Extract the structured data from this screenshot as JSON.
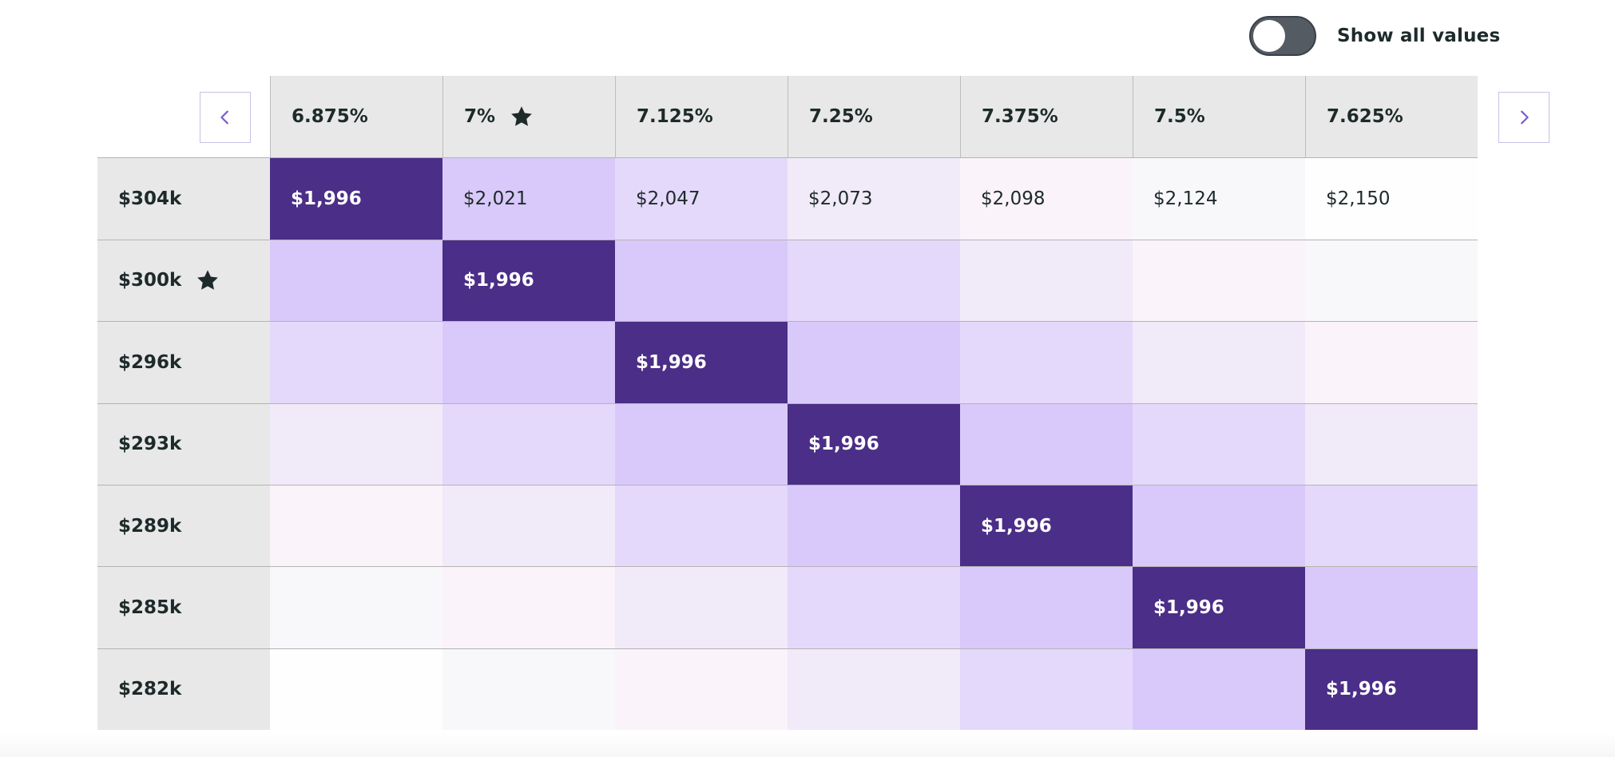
{
  "toggle": {
    "label": "Show all values",
    "on": false
  },
  "nav": {
    "prev_icon": "chevron-left-icon",
    "next_icon": "chevron-right-icon"
  },
  "colors": {
    "selected": "#4b2e87",
    "accent": "#7b5cc9",
    "levels": [
      "#4b2e87",
      "#d8c9fa",
      "#e4d9fb",
      "#f1eaf8",
      "#faf3fa",
      "#f8f8fb",
      "#fefefe"
    ]
  },
  "grid": {
    "columns": [
      {
        "label": "6.875%",
        "starred": false
      },
      {
        "label": "7%",
        "starred": true
      },
      {
        "label": "7.125%",
        "starred": false
      },
      {
        "label": "7.25%",
        "starred": false
      },
      {
        "label": "7.375%",
        "starred": false
      },
      {
        "label": "7.5%",
        "starred": false
      },
      {
        "label": "7.625%",
        "starred": false
      }
    ],
    "rows": [
      {
        "label": "$304k",
        "starred": false,
        "values": [
          "$1,996",
          "$2,021",
          "$2,047",
          "$2,073",
          "$2,098",
          "$2,124",
          "$2,150"
        ]
      },
      {
        "label": "$300k",
        "starred": true,
        "values": [
          "",
          "$1,996",
          "",
          "",
          "",
          "",
          ""
        ]
      },
      {
        "label": "$296k",
        "starred": false,
        "values": [
          "",
          "",
          "$1,996",
          "",
          "",
          "",
          ""
        ]
      },
      {
        "label": "$293k",
        "starred": false,
        "values": [
          "",
          "",
          "",
          "$1,996",
          "",
          "",
          ""
        ]
      },
      {
        "label": "$289k",
        "starred": false,
        "values": [
          "",
          "",
          "",
          "",
          "$1,996",
          "",
          ""
        ]
      },
      {
        "label": "$285k",
        "starred": false,
        "values": [
          "",
          "",
          "",
          "",
          "",
          "$1,996",
          ""
        ]
      },
      {
        "label": "$282k",
        "starred": false,
        "values": [
          "",
          "",
          "",
          "",
          "",
          "",
          "$1,996"
        ]
      }
    ]
  }
}
